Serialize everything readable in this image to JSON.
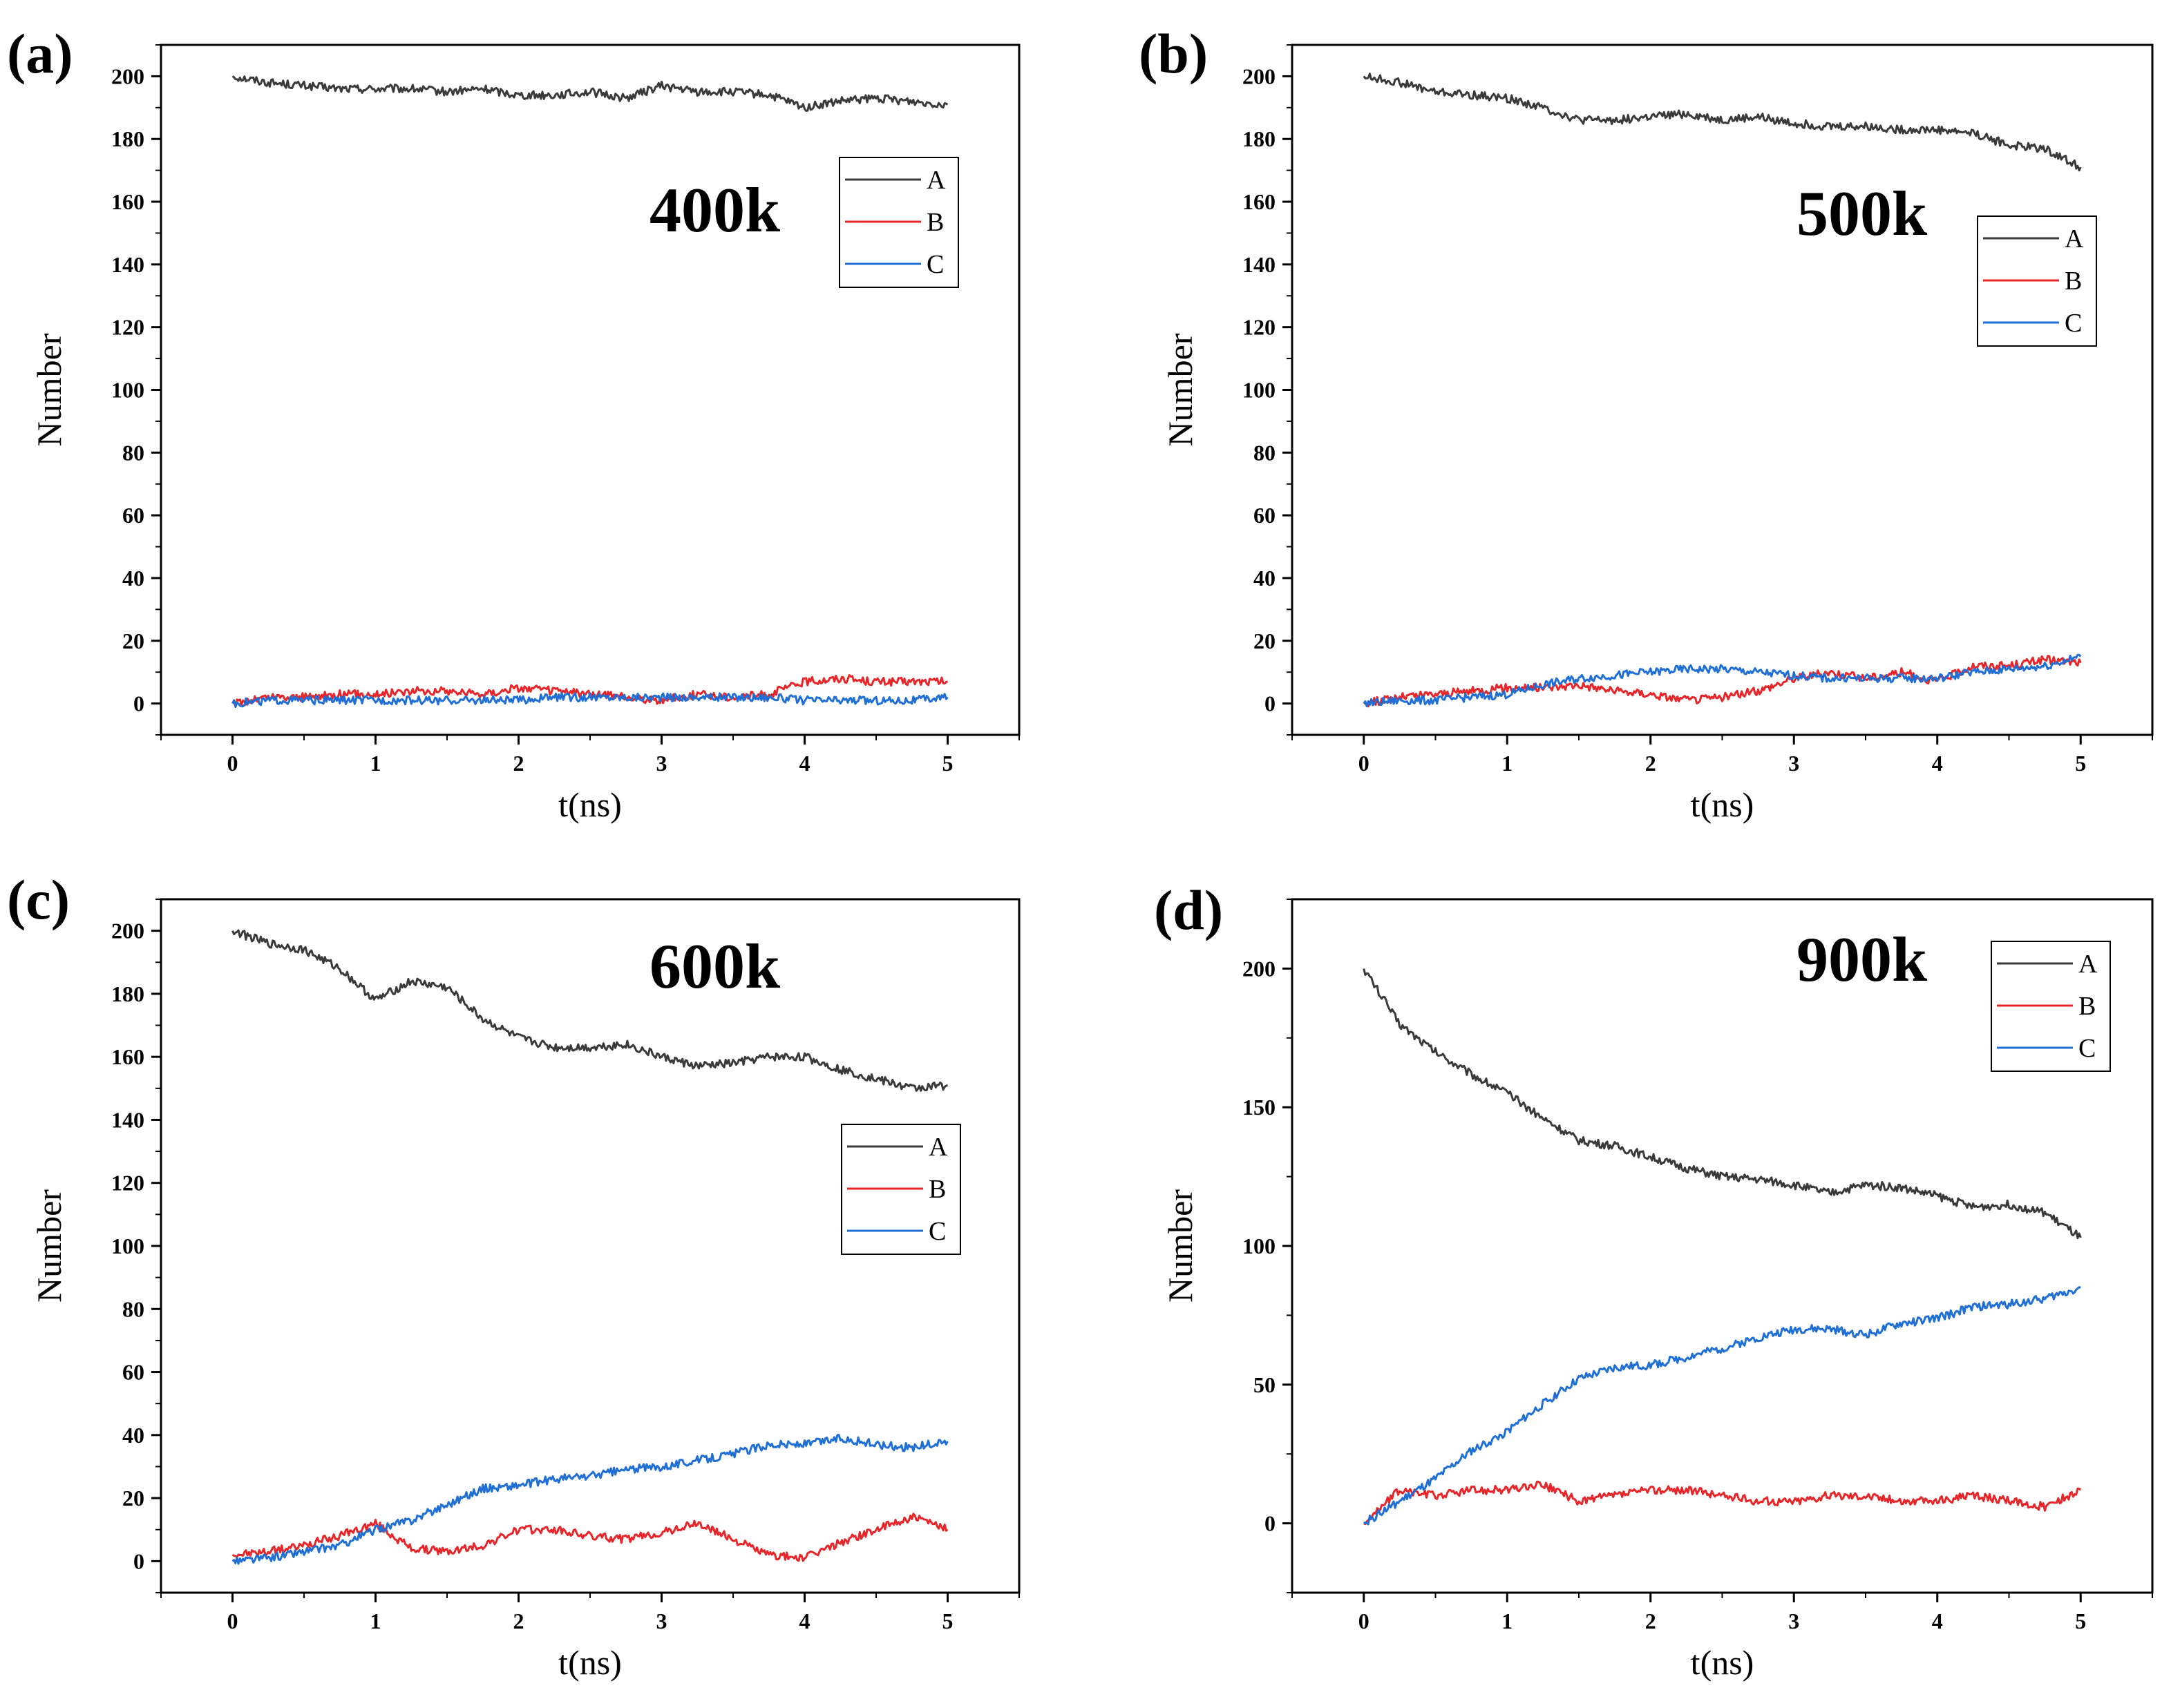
{
  "colors": {
    "A": "#3a3a3a",
    "B": "#e8262a",
    "C": "#1f6fd6",
    "frame": "#000000"
  },
  "chart_data": [
    {
      "type": "line",
      "panel": "(a)",
      "annotation": "400k",
      "xlabel": "t(ns)",
      "ylabel": "Number",
      "xlim": [
        -0.5,
        5.5
      ],
      "ylim": [
        -10,
        210
      ],
      "xticks": [
        "0",
        "1",
        "2",
        "3",
        "4",
        "5"
      ],
      "yticks": [
        "0",
        "20",
        "40",
        "60",
        "80",
        "100",
        "120",
        "140",
        "160",
        "180",
        "200"
      ],
      "legend": [
        "A",
        "B",
        "C"
      ],
      "x": [
        0,
        0.25,
        0.5,
        0.75,
        1,
        1.25,
        1.5,
        1.75,
        2,
        2.25,
        2.5,
        2.75,
        3,
        3.25,
        3.5,
        3.75,
        4,
        4.25,
        4.5,
        4.75,
        5
      ],
      "series": [
        {
          "name": "A",
          "values": [
            200,
            198,
            197,
            196,
            196,
            196,
            195,
            196,
            194,
            194,
            195,
            193,
            197,
            195,
            195,
            194,
            190,
            192,
            193,
            192,
            191
          ]
        },
        {
          "name": "B",
          "values": [
            0,
            2,
            2,
            3,
            3,
            4,
            4,
            3,
            5,
            4,
            3,
            2,
            1,
            3,
            2,
            3,
            7,
            8,
            7,
            7,
            7
          ]
        },
        {
          "name": "C",
          "values": [
            0,
            1,
            1,
            1,
            1,
            1,
            1,
            1,
            1,
            2,
            2,
            2,
            2,
            2,
            2,
            2,
            1,
            1,
            1,
            1,
            2
          ]
        }
      ]
    },
    {
      "type": "line",
      "panel": "(b)",
      "annotation": "500k",
      "xlabel": "t(ns)",
      "ylabel": "Number",
      "xlim": [
        -0.5,
        5.5
      ],
      "ylim": [
        -10,
        210
      ],
      "xticks": [
        "0",
        "1",
        "2",
        "3",
        "4",
        "5"
      ],
      "yticks": [
        "0",
        "20",
        "40",
        "60",
        "80",
        "100",
        "120",
        "140",
        "160",
        "180",
        "200"
      ],
      "legend": [
        "A",
        "B",
        "C"
      ],
      "x": [
        0,
        0.25,
        0.5,
        0.75,
        1,
        1.25,
        1.5,
        1.75,
        2,
        2.25,
        2.5,
        2.75,
        3,
        3.25,
        3.5,
        3.75,
        4,
        4.25,
        4.5,
        4.75,
        5
      ],
      "series": [
        {
          "name": "A",
          "values": [
            200,
            198,
            195,
            194,
            193,
            190,
            186,
            186,
            187,
            188,
            186,
            187,
            185,
            184,
            184,
            183,
            183,
            182,
            178,
            177,
            171
          ]
        },
        {
          "name": "B",
          "values": [
            0,
            2,
            3,
            4,
            5,
            5,
            6,
            4,
            3,
            1,
            2,
            4,
            8,
            10,
            8,
            10,
            7,
            12,
            12,
            14,
            13
          ]
        },
        {
          "name": "C",
          "values": [
            0,
            1,
            1,
            2,
            3,
            6,
            8,
            9,
            10,
            11,
            11,
            10,
            9,
            8,
            8,
            8,
            8,
            10,
            11,
            12,
            15
          ]
        }
      ]
    },
    {
      "type": "line",
      "panel": "(c)",
      "annotation": "600k",
      "xlabel": "t(ns)",
      "ylabel": "Number",
      "xlim": [
        -0.5,
        5.5
      ],
      "ylim": [
        -10,
        210
      ],
      "xticks": [
        "0",
        "1",
        "2",
        "3",
        "4",
        "5"
      ],
      "yticks": [
        "0",
        "20",
        "40",
        "60",
        "80",
        "100",
        "120",
        "140",
        "160",
        "180",
        "200"
      ],
      "legend": [
        "A",
        "B",
        "C"
      ],
      "x": [
        0,
        0.25,
        0.5,
        0.75,
        1,
        1.25,
        1.5,
        1.75,
        2,
        2.25,
        2.5,
        2.75,
        3,
        3.25,
        3.5,
        3.75,
        4,
        4.25,
        4.5,
        4.75,
        5
      ],
      "series": [
        {
          "name": "A",
          "values": [
            200,
            196,
            194,
            188,
            178,
            184,
            182,
            172,
            166,
            163,
            163,
            164,
            160,
            157,
            158,
            160,
            160,
            156,
            153,
            150,
            151
          ]
        },
        {
          "name": "B",
          "values": [
            2,
            3,
            5,
            8,
            12,
            4,
            3,
            5,
            10,
            10,
            8,
            7,
            9,
            12,
            7,
            2,
            1,
            6,
            10,
            14,
            10
          ]
        },
        {
          "name": "C",
          "values": [
            0,
            1,
            3,
            5,
            10,
            13,
            18,
            23,
            24,
            26,
            27,
            29,
            30,
            32,
            34,
            37,
            37,
            39,
            37,
            36,
            38
          ]
        }
      ]
    },
    {
      "type": "line",
      "panel": "(d)",
      "annotation": "900k",
      "xlabel": "t(ns)",
      "ylabel": "Number",
      "xlim": [
        -0.5,
        5.5
      ],
      "ylim": [
        -25,
        225
      ],
      "xticks": [
        "0",
        "1",
        "2",
        "3",
        "4",
        "5"
      ],
      "yticks": [
        "0",
        "50",
        "100",
        "150",
        "200"
      ],
      "legend": [
        "A",
        "B",
        "C"
      ],
      "x": [
        0,
        0.25,
        0.5,
        0.75,
        1,
        1.25,
        1.5,
        1.75,
        2,
        2.25,
        2.5,
        2.75,
        3,
        3.25,
        3.5,
        3.75,
        4,
        4.25,
        4.5,
        4.75,
        5
      ],
      "series": [
        {
          "name": "A",
          "values": [
            200,
            180,
            170,
            162,
            155,
            146,
            138,
            136,
            132,
            128,
            125,
            124,
            122,
            119,
            122,
            121,
            118,
            114,
            115,
            112,
            103
          ]
        },
        {
          "name": "B",
          "values": [
            0,
            12,
            10,
            12,
            12,
            14,
            8,
            10,
            12,
            12,
            10,
            8,
            8,
            10,
            10,
            8,
            8,
            10,
            8,
            6,
            12
          ]
        },
        {
          "name": "C",
          "values": [
            0,
            8,
            16,
            26,
            33,
            43,
            52,
            56,
            57,
            60,
            63,
            67,
            70,
            70,
            68,
            72,
            74,
            78,
            79,
            81,
            85
          ]
        }
      ]
    }
  ]
}
